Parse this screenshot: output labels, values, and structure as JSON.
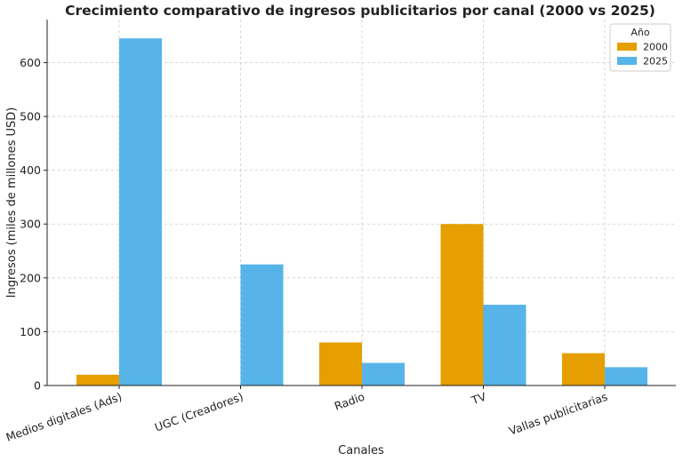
{
  "chart_data": {
    "type": "bar",
    "title": "Crecimiento comparativo de ingresos publicitarios por canal (2000 vs 2025)",
    "xlabel": "Canales",
    "ylabel": "Ingresos (miles de millones USD)",
    "categories": [
      "Medios digitales (Ads)",
      "UGC (Creadores)",
      "Radio",
      "TV",
      "Vallas publicitarias"
    ],
    "series": [
      {
        "name": "2000",
        "values": [
          20,
          0,
          80,
          300,
          60
        ],
        "color": "#E69F00"
      },
      {
        "name": "2025",
        "values": [
          645,
          225,
          42,
          150,
          34
        ],
        "color": "#56B4E9"
      }
    ],
    "ylim": [
      0,
      680
    ],
    "yticks": [
      0,
      100,
      200,
      300,
      400,
      500,
      600
    ],
    "grid": true,
    "legend": {
      "title": "Año",
      "placement": "top-right"
    }
  }
}
